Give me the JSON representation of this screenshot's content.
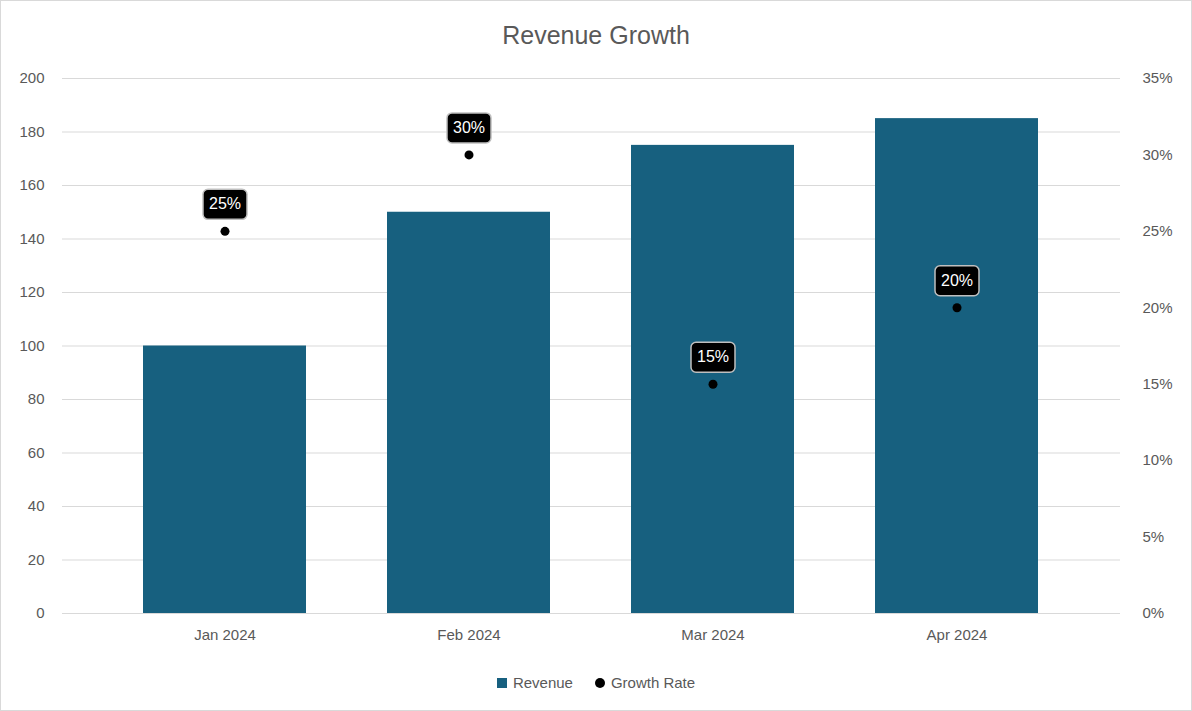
{
  "chart_data": {
    "type": "bar",
    "title": "Revenue Growth",
    "categories": [
      "Jan 2024",
      "Feb 2024",
      "Mar 2024",
      "Apr 2024"
    ],
    "series": [
      {
        "name": "Revenue",
        "type": "bar",
        "color": "#17607f",
        "values": [
          100,
          150,
          175,
          185
        ]
      },
      {
        "name": "Growth Rate",
        "type": "scatter",
        "axis": "y2",
        "color": "#000000",
        "marker": "circle",
        "data_labels": true,
        "values": [
          25,
          30,
          15,
          20
        ],
        "value_labels": [
          "25%",
          "30%",
          "15%",
          "20%"
        ]
      }
    ],
    "ylim": [
      0,
      200
    ],
    "yticks": [
      0,
      20,
      40,
      60,
      80,
      100,
      120,
      140,
      160,
      180,
      200
    ],
    "y2lim": [
      0,
      35
    ],
    "y2ticks": [
      {
        "value": 0,
        "label": "0%"
      },
      {
        "value": 5,
        "label": "5%"
      },
      {
        "value": 10,
        "label": "10%"
      },
      {
        "value": 15,
        "label": "15%"
      },
      {
        "value": 20,
        "label": "20%"
      },
      {
        "value": 25,
        "label": "25%"
      },
      {
        "value": 30,
        "label": "30%"
      },
      {
        "value": 35,
        "label": "35%"
      }
    ],
    "grid": true,
    "legend": "bottom"
  }
}
